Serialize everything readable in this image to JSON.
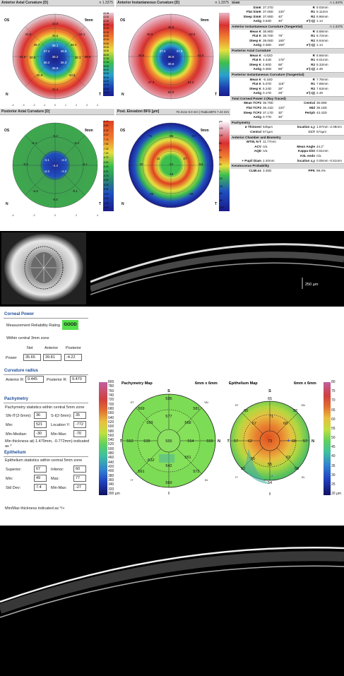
{
  "maps": {
    "anterior_axial": {
      "title": "Anterior Axial Curvature [D]",
      "n": "n 1.3375"
    },
    "anterior_inst": {
      "title": "Anterior Instantaneous Curvature [D]",
      "n": "n 1.3375"
    },
    "posterior_axial": {
      "title": "Posterior Axial Curvature [D]"
    },
    "elevation": {
      "title": "Post. Elevation BFS [µm]",
      "info": "Fit Zone 8.0 mm | RadiusBFS 7.44 mm"
    },
    "labels": {
      "os": "OS",
      "size": "9mm",
      "n": "N",
      "t": "T"
    }
  },
  "stats": {
    "simk": {
      "title": "SimK",
      "n": "n 1.3375",
      "rows": [
        [
          "SimK",
          "37.37D",
          "",
          "R",
          "9.03mm"
        ],
        [
          "Flat SimK",
          "37.06D",
          "130°",
          "R1",
          "9.11mm"
        ],
        [
          "Steep SimK",
          "37.69D",
          "40°",
          "R2",
          "8.96mm"
        ],
        [
          "Astig",
          "0.63D",
          "40°",
          "e²(-Q)",
          "1.14"
        ]
      ]
    },
    "ant_inst": {
      "title": "Anterior Instantaneous Curvature (Tangential)",
      "n": "n 1.3375",
      "rows": [
        [
          "Mean K",
          "38.88D",
          "",
          "R",
          "8.68mm"
        ],
        [
          "Flat K",
          "38.70D",
          "79°",
          "R1",
          "8.72mm"
        ],
        [
          "Steep K",
          "39.06D",
          "169°",
          "R2",
          "8.64mm"
        ],
        [
          "Astig",
          "0.36D",
          "169°",
          "e²(-Q)",
          "1.14"
        ]
      ]
    },
    "post_axial": {
      "title": "Posterior Axial Curvature",
      "rows": [
        [
          "Mean K",
          "-4.62D",
          "",
          "R",
          "8.66mm"
        ],
        [
          "Flat K",
          "4.44D",
          "178°",
          "R1",
          "9.01mm"
        ],
        [
          "Steep K",
          "4.80D",
          "88°",
          "R2",
          "8.33mm"
        ],
        [
          "Astig",
          "0.36D",
          "88°",
          "e²(-Q)",
          "2.49"
        ]
      ]
    },
    "post_inst": {
      "title": "Posterior Instantaneous Curvature (Tangential)",
      "rows": [
        [
          "Mean K",
          "-5.16D",
          "",
          "R",
          "7.76mm"
        ],
        [
          "Flat K",
          "5.07D",
          "118°",
          "R1",
          "7.89mm"
        ],
        [
          "Steep K",
          "5.24D",
          "28°",
          "R2",
          "7.63mm"
        ],
        [
          "Astig",
          "0.17D",
          "28°",
          "e²(-Q)",
          "2.49"
        ]
      ]
    },
    "total": {
      "title": "Total Corneal Power 2 (Ray Traced)",
      "rows": [
        [
          "Mean TCP2",
          "36.79D",
          "",
          "Central",
          "36.69D"
        ],
        [
          "Flat TCP2",
          "36.41D",
          "120°",
          "Mid",
          "39.16D"
        ],
        [
          "Steep TCP2",
          "37.17D",
          "30°",
          "Periph",
          "43.42D"
        ],
        [
          "Astig",
          "0.77D",
          "30°",
          "",
          ""
        ]
      ]
    },
    "pachy": {
      "title": "Pachymetry",
      "rows": [
        [
          "ø Thinnest",
          "535µm",
          "",
          "location x,y",
          "1.87mm -2.08mm"
        ],
        [
          "Central",
          "571µm",
          "",
          "CCT",
          "574µm"
        ]
      ]
    },
    "chamber": {
      "title": "Anterior Chamber and Biometry",
      "rows": [
        [
          "WTW, N-T",
          "11.77mm",
          "",
          "",
          ""
        ],
        [
          "ACV",
          "n/a",
          "",
          "Mean Angle",
          "44.2°"
        ],
        [
          "AQD",
          "n/a",
          "",
          "Kappa Dist",
          "0.51mm"
        ],
        [
          "",
          "",
          "",
          "ASL endo",
          "n/a"
        ],
        [
          "+ Pupil Diam",
          "2.40mm",
          "",
          "location x,y",
          "0.05mm -0.51mm"
        ]
      ]
    },
    "kc": {
      "title": "Keratoconus Probability",
      "rows": [
        [
          "CLMI.ss",
          "3.45D",
          "",
          "PPK",
          "99.4%"
        ]
      ]
    }
  },
  "scale_top": {
    "ant_axial": [
      "43.36",
      "43.00",
      "42.50",
      "42.00",
      "41.50",
      "41.00",
      "40.50",
      "40.00",
      "39.50",
      "39.00",
      "38.50",
      "38.00",
      "37.50",
      "37.00",
      "36.50",
      "36.00",
      "35.50",
      "35.00",
      "34.50",
      "34.00",
      "33.50",
      "33.00"
    ],
    "post_axial": [
      "-8.75",
      "-8.50",
      "-8.25",
      "-8.00",
      "-7.75",
      "-7.50",
      "-7.25",
      "-7.00",
      "-6.75",
      "-6.50",
      "-6.25",
      "-6.00",
      "-5.75",
      "-5.50",
      "-5.25",
      "-5.00",
      "-4.75",
      "-4.50",
      "-4.25",
      "-4.00"
    ],
    "elev": [
      "µm",
      "120",
      "100",
      "80",
      "60",
      "40",
      "20",
      "0",
      "-20",
      "-40",
      "-60",
      "-80",
      "-100"
    ]
  },
  "oct1": {
    "scale_label": "250 µm"
  },
  "corneal": {
    "title": "Corneal Power",
    "reliability_label": "Measurement Reliability Rating",
    "reliability_value": "GOOD",
    "zone": "Within central 3mm zone",
    "headers": [
      "Net",
      "Anterior",
      "Posterior"
    ],
    "row_label": "Power",
    "values": [
      "35.65",
      "39.81",
      "-4.22"
    ]
  },
  "curv": {
    "title": "Curvature radius",
    "ant_label": "Anterior R:",
    "ant_value": "9.445",
    "post_label": "Posterior R:",
    "post_value": "9.470"
  },
  "pachymetry": {
    "title": "Pachymetry",
    "sub": "Pachymetry statistics within central 5mm zone",
    "rows": [
      {
        "l1": "SN-IT(2-5mm):",
        "v1": "36",
        "l2": "S-I(2-5mm):",
        "v2": "35"
      },
      {
        "l1": "Min:",
        "v1": "521",
        "l2": "Location Y:",
        "v2": "-772"
      },
      {
        "l1": "Min-Median:",
        "v1": "-30",
        "l2": "Min-Max:",
        "v2": "-70"
      }
    ],
    "note": "Min thickness at(-1.479mm, -0.772mm) indicated as *"
  },
  "epithelium": {
    "title": "Epithelium",
    "sub": "Epithelium statistics within central 5mm zone",
    "rows": [
      {
        "l1": "Superior:",
        "v1": "67",
        "l2": "Inferior:",
        "v2": "60"
      },
      {
        "l1": "Min:",
        "v1": "49",
        "l2": "Max:",
        "v2": "77"
      },
      {
        "l1": "Std Dev:",
        "v1": "7.4",
        "l2": "Min-Max:",
        "v2": "-27"
      }
    ],
    "note": "Min/Max thickness indicated as */+"
  },
  "pmap": {
    "title": "Pachymetry Map",
    "size": "6mm x 6mm",
    "scale": [
      "800",
      "780",
      "760",
      "740",
      "720",
      "700",
      "680",
      "660",
      "640",
      "620",
      "600",
      "580",
      "560",
      "540",
      "520",
      "500",
      "480",
      "460",
      "440",
      "420",
      "400",
      "380",
      "360",
      "340",
      "320",
      "300 µm"
    ],
    "S": "S",
    "I": "I",
    "T": "T",
    "N": "N",
    "SN": "SN",
    "ST": "ST",
    "IN": "IN",
    "IT": "IT",
    "vals": {
      "s_out": "595",
      "s_mid": "577",
      "st_out": "569",
      "st_mid": "559",
      "sn_out": "581",
      "sn_mid": "568",
      "t_out": "552",
      "t_mid": "539",
      "c": "555",
      "n_mid": "554",
      "n_out": "559",
      "it_mid": "532",
      "it_out": "561",
      "i_mid": "542",
      "in_mid": "551",
      "in_out": "572",
      "i_out": "569"
    }
  },
  "emap": {
    "title": "Epithelium Map",
    "size": "6mm x 6mm",
    "scale": [
      "80",
      "75",
      "70",
      "65",
      "60",
      "55",
      "50",
      "45",
      "40",
      "35",
      "30",
      "25",
      "20 µm"
    ],
    "S": "S",
    "I": "I",
    "T": "T",
    "N": "N",
    "SN": "SN",
    "ST": "ST",
    "IN": "IN",
    "IT": "IT",
    "vals": {
      "s_out": "65",
      "s_mid": "71",
      "st_out": "60",
      "st_mid": "67",
      "sn_out": "58",
      "sn_mid": "68",
      "t_out": "57",
      "t_mid": "62",
      "c": "73",
      "n_mid": "68",
      "n_out": "57",
      "it_mid": "55",
      "it_out": "52",
      "i_mid": "55",
      "in_mid": "63",
      "in_out": "58",
      "i_out": "54"
    }
  },
  "colors": {
    "good": "#55e04a",
    "header_blue": "#1f4e9a"
  }
}
